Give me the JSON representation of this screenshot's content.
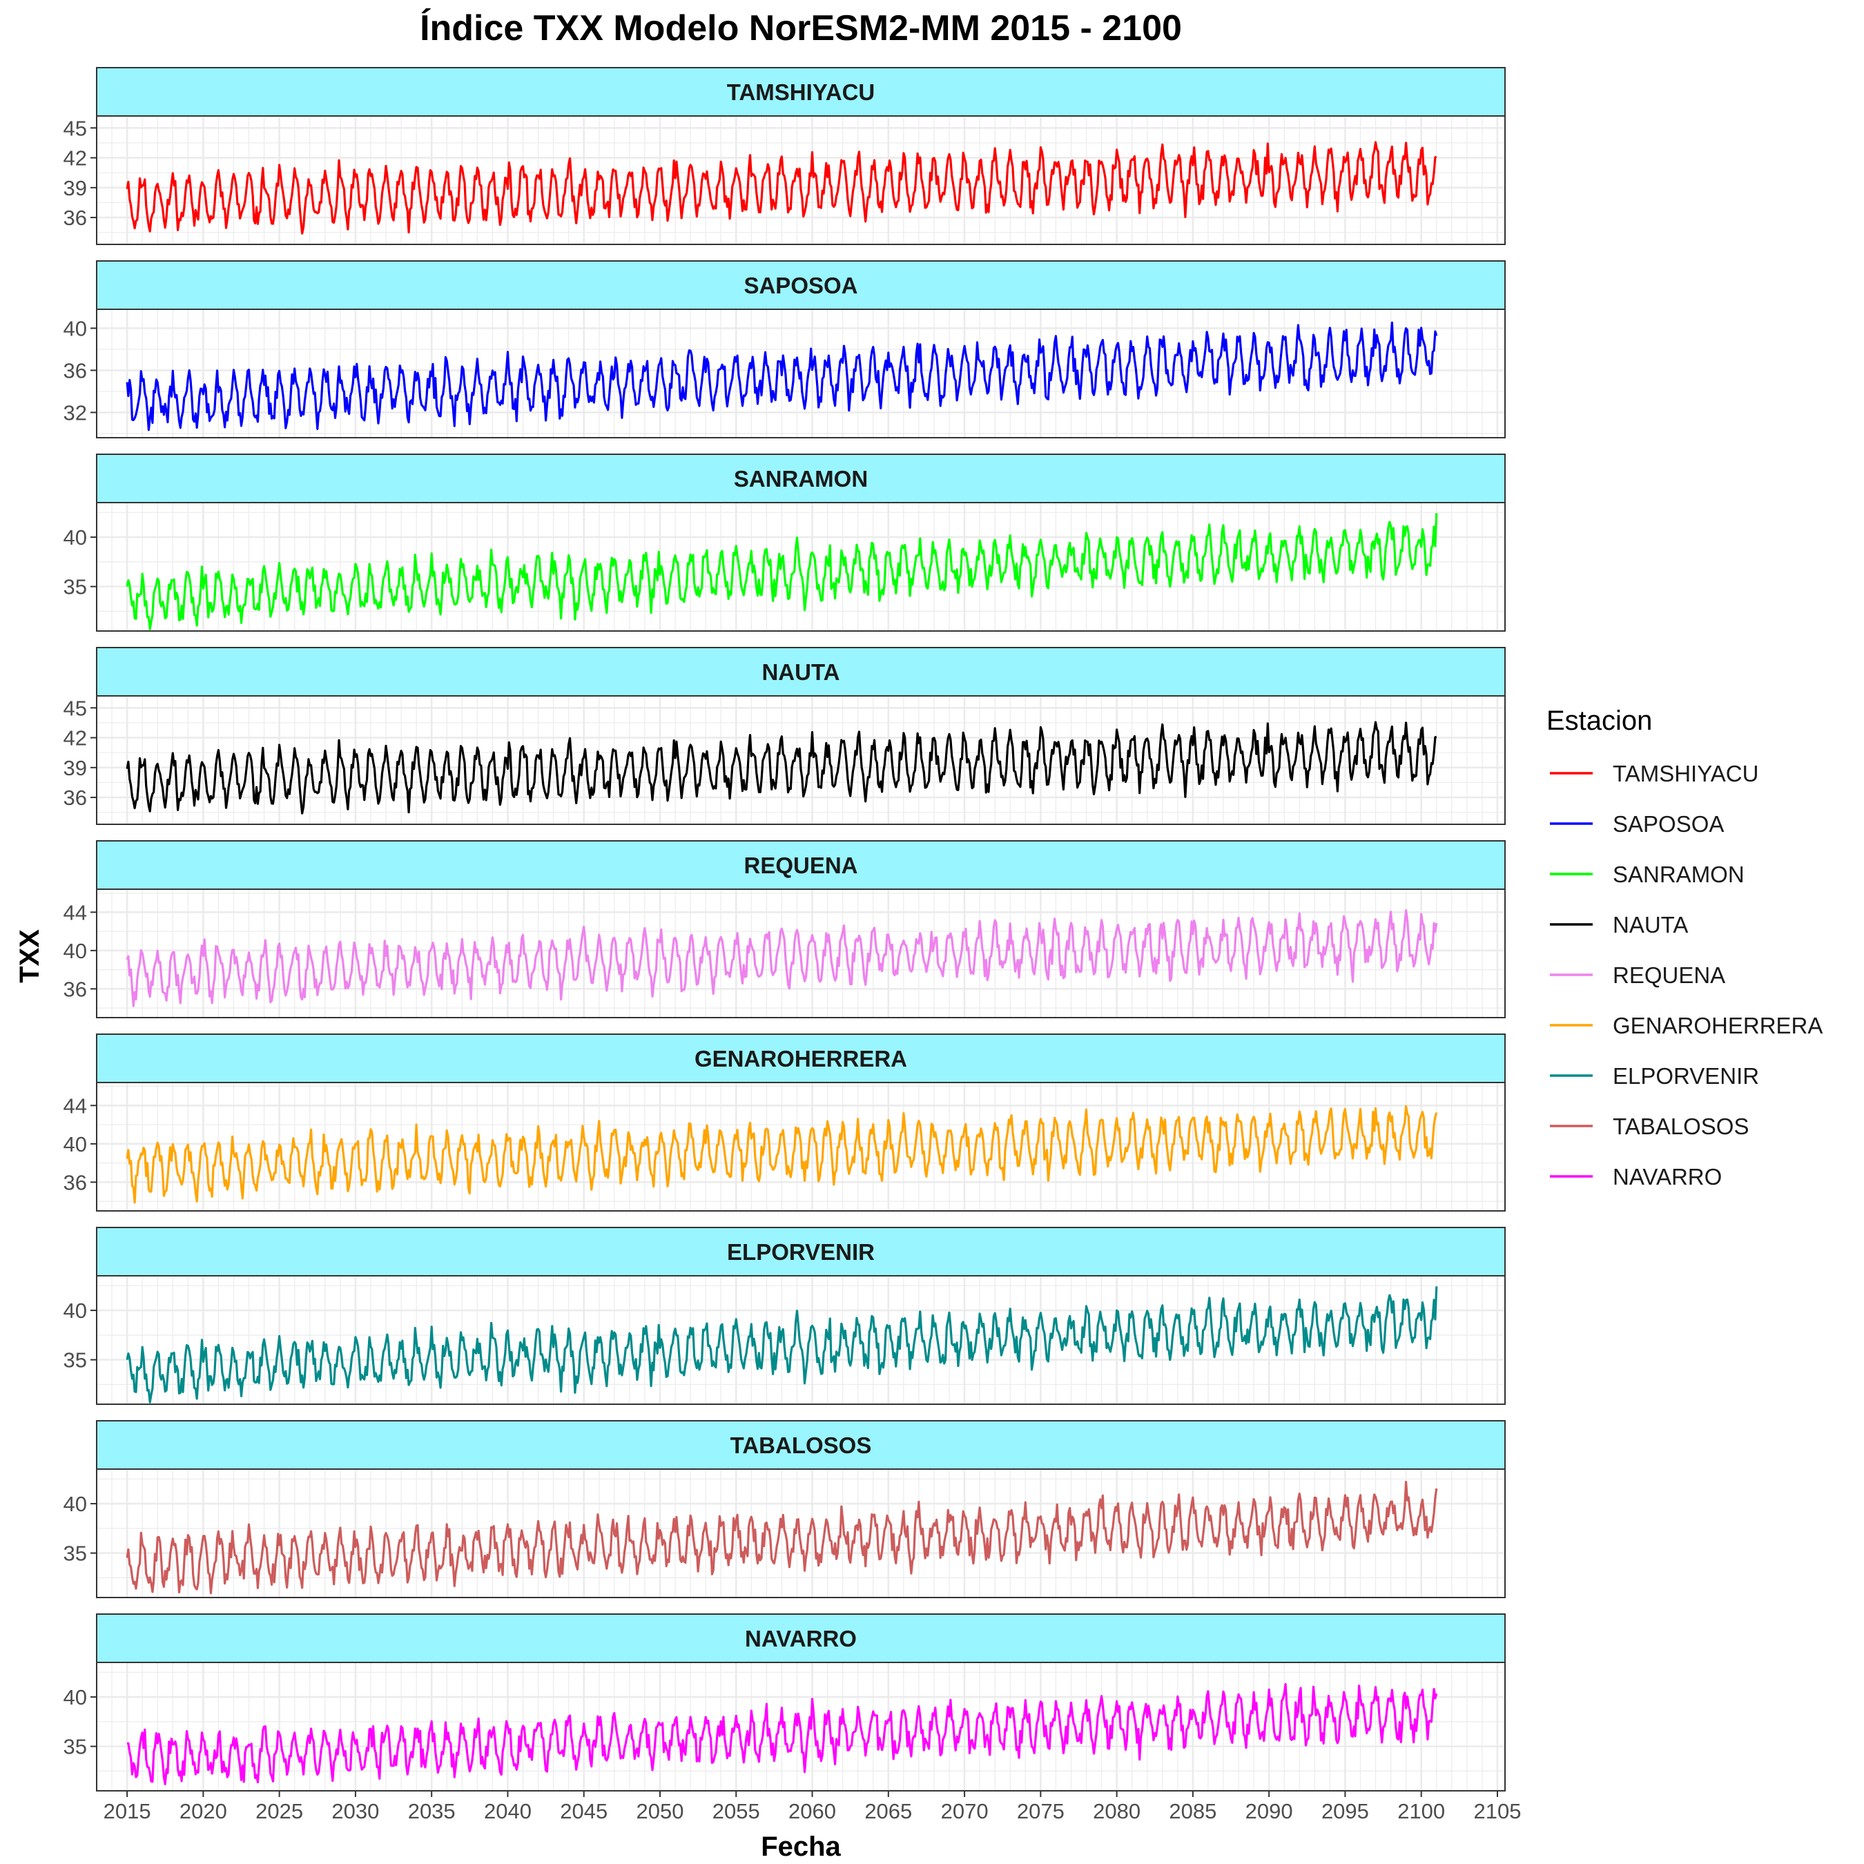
{
  "chart_data": {
    "type": "line",
    "title": "Índice TXX Modelo NorESM2-MM 2015 - 2100",
    "xlabel": "Fecha",
    "ylabel": "TXX",
    "x_ticks": [
      "2015",
      "2020",
      "2025",
      "2030",
      "2035",
      "2040",
      "2045",
      "2050",
      "2055",
      "2060",
      "2065",
      "2070",
      "2075",
      "2080",
      "2085",
      "2090",
      "2095",
      "2100",
      "2105"
    ],
    "xlim": [
      2013,
      2105.5
    ],
    "data_range_years": [
      2015,
      2101
    ],
    "sampling": "monthly",
    "grid": true,
    "strip_fill": "#99f5ff",
    "legend": {
      "title": "Estacion",
      "placement": "right"
    },
    "panels": [
      {
        "name": "TAMSHIYACU",
        "color": "#ff0000",
        "yticks": [
          36,
          39,
          42,
          45
        ],
        "ylim": [
          33.3,
          46.2
        ],
        "start": 37.5,
        "end": 40.5,
        "amp": 2.2,
        "noise": 1.0,
        "seed": 11
      },
      {
        "name": "SAPOSOA",
        "color": "#0000ff",
        "yticks": [
          32,
          36,
          40
        ],
        "ylim": [
          29.6,
          41.8
        ],
        "start": 33.0,
        "end": 37.5,
        "amp": 2.0,
        "noise": 1.0,
        "seed": 22
      },
      {
        "name": "SANRAMON",
        "color": "#00ff00",
        "yticks": [
          35,
          40
        ],
        "ylim": [
          30.5,
          43.5
        ],
        "start": 33.8,
        "end": 38.8,
        "amp": 2.0,
        "noise": 1.1,
        "seed": 33
      },
      {
        "name": "NAUTA",
        "color": "#000000",
        "yticks": [
          36,
          39,
          42,
          45
        ],
        "ylim": [
          33.3,
          46.2
        ],
        "start": 37.5,
        "end": 40.5,
        "amp": 2.2,
        "noise": 1.0,
        "seed": 11
      },
      {
        "name": "REQUENA",
        "color": "#ee82ee",
        "yticks": [
          36,
          40,
          44
        ],
        "ylim": [
          33.0,
          46.4
        ],
        "start": 37.5,
        "end": 41.0,
        "amp": 2.2,
        "noise": 1.0,
        "seed": 55
      },
      {
        "name": "GENAROHERRERA",
        "color": "#ffa500",
        "yticks": [
          36,
          40,
          44
        ],
        "ylim": [
          33.0,
          46.4
        ],
        "start": 37.5,
        "end": 41.0,
        "amp": 2.2,
        "noise": 1.0,
        "seed": 66
      },
      {
        "name": "ELPORVENIR",
        "color": "#008b8b",
        "yticks": [
          35,
          40
        ],
        "ylim": [
          30.5,
          43.5
        ],
        "start": 33.8,
        "end": 38.8,
        "amp": 2.0,
        "noise": 1.1,
        "seed": 33
      },
      {
        "name": "TABALOSOS",
        "color": "#cd5c5c",
        "yticks": [
          35,
          40
        ],
        "ylim": [
          30.5,
          43.5
        ],
        "start": 33.8,
        "end": 38.6,
        "amp": 2.0,
        "noise": 1.1,
        "seed": 88
      },
      {
        "name": "NAVARRO",
        "color": "#ff00ff",
        "yticks": [
          35,
          40
        ],
        "ylim": [
          30.5,
          43.5
        ],
        "start": 33.8,
        "end": 38.4,
        "amp": 2.0,
        "noise": 1.1,
        "seed": 99
      }
    ]
  }
}
